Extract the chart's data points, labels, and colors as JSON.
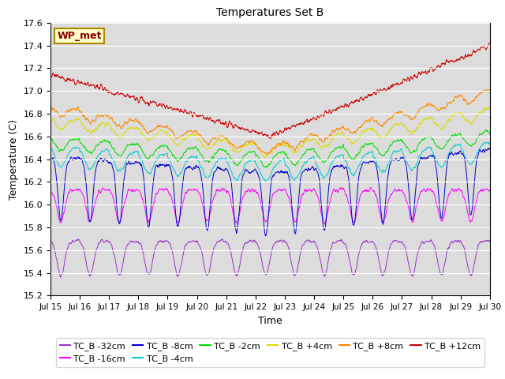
{
  "title": "Temperatures Set B",
  "xlabel": "Time",
  "ylabel": "Temperature (C)",
  "ylim": [
    15.2,
    17.6
  ],
  "background_color": "#dcdcdc",
  "legend_label": "WP_met",
  "series": [
    {
      "label": "TC_B -32cm",
      "color": "#9933CC"
    },
    {
      "label": "TC_B -16cm",
      "color": "#FF00FF"
    },
    {
      "label": "TC_B -8cm",
      "color": "#0000CC"
    },
    {
      "label": "TC_B -4cm",
      "color": "#00CCCC"
    },
    {
      "label": "TC_B -2cm",
      "color": "#00DD00"
    },
    {
      "label": "TC_B +4cm",
      "color": "#DDDD00"
    },
    {
      "label": "TC_B +8cm",
      "color": "#FF8800"
    },
    {
      "label": "TC_B +12cm",
      "color": "#CC0000"
    }
  ],
  "xtick_labels": [
    "Jul 15",
    "Jul 16",
    "Jul 17",
    "Jul 18",
    "Jul 19",
    "Jul 20",
    "Jul 21",
    "Jul 22",
    "Jul 23",
    "Jul 24",
    "Jul 25",
    "Jul 26",
    "Jul 27",
    "Jul 28",
    "Jul 29",
    "Jul 30"
  ],
  "n_points": 1440,
  "days": 15
}
